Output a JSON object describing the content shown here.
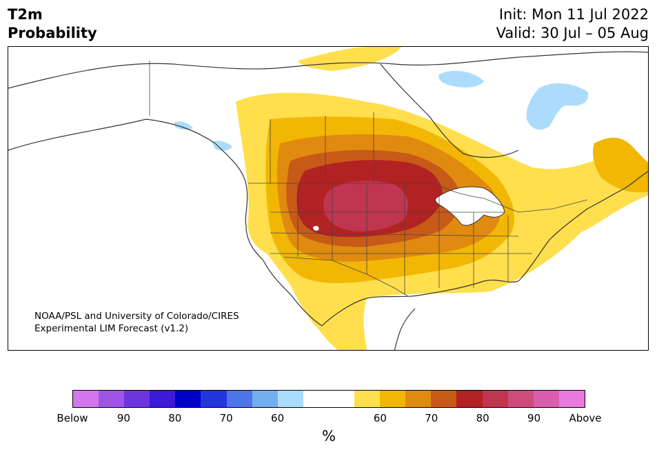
{
  "header": {
    "title_line1": "T2m",
    "title_line2": "Probability",
    "init": "Init: Mon 11 Jul 2022",
    "valid": "Valid: 30 Jul – 05 Aug"
  },
  "credit": {
    "line1": "NOAA/PSL and University of Colorado/CIRES",
    "line2": "Experimental LIM Forecast (v1.2)"
  },
  "colorbar": {
    "colors": [
      "#d277eb",
      "#9e55e6",
      "#6d35dd",
      "#3b1ad9",
      "#0000cc",
      "#2336dd",
      "#4f73ea",
      "#73afef",
      "#acdcfb",
      "#ffffff",
      "#ffffff",
      "#ffdf4d",
      "#f2b705",
      "#e08a0f",
      "#c85a18",
      "#b22222",
      "#c03550",
      "#cc4c7a",
      "#db5dad",
      "#e879de"
    ],
    "labels": [
      {
        "text": "Below",
        "slot": 0
      },
      {
        "text": "90",
        "slot": 2
      },
      {
        "text": "80",
        "slot": 4
      },
      {
        "text": "70",
        "slot": 6
      },
      {
        "text": "60",
        "slot": 8
      },
      {
        "text": "60",
        "slot": 12
      },
      {
        "text": "70",
        "slot": 14
      },
      {
        "text": "80",
        "slot": 16
      },
      {
        "text": "90",
        "slot": 18
      },
      {
        "text": "Above",
        "slot": 20
      }
    ],
    "unit": "%"
  }
}
